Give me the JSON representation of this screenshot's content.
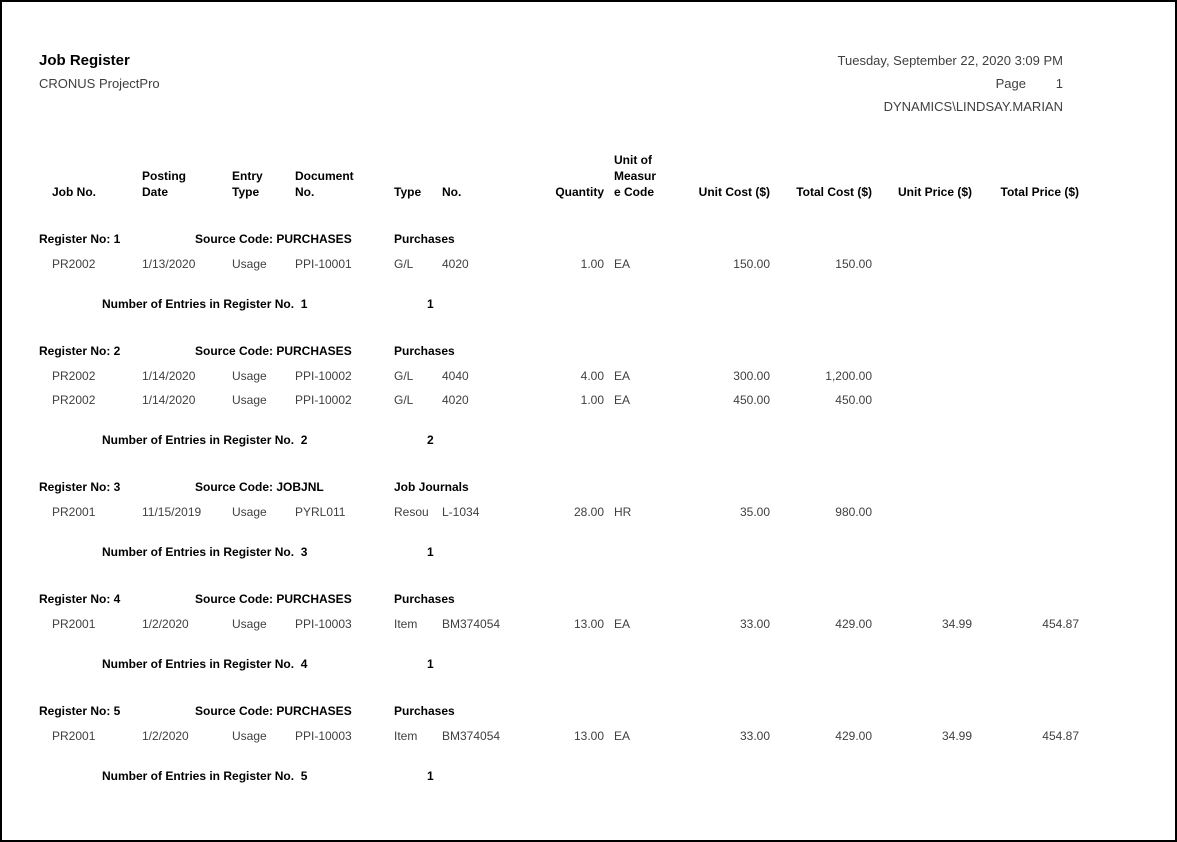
{
  "page": {
    "background": "#ffffff",
    "border_color": "#000000",
    "regular_text_color": "#3f3f3f",
    "bold_text_color": "#000000"
  },
  "header": {
    "title": "Job Register",
    "company": "CRONUS ProjectPro",
    "datetime": "Tuesday, September 22, 2020 3:09 PM",
    "page_label": "Page",
    "page_number": "1",
    "user": "DYNAMICS\\LINDSAY.MARIAN"
  },
  "columns": {
    "job_no": "Job No.",
    "posting_date_lines": [
      "Posting",
      "Date"
    ],
    "entry_type_lines": [
      "Entry",
      "Type"
    ],
    "document_no_lines": [
      "Document",
      "No."
    ],
    "type": "Type",
    "no": "No.",
    "quantity": "Quantity",
    "uom_lines": [
      "Unit of",
      "Measur",
      "e Code"
    ],
    "unit_cost": "Unit Cost ($)",
    "total_cost": "Total Cost ($)",
    "unit_price": "Unit Price ($)",
    "total_price": "Total Price ($)"
  },
  "registers": [
    {
      "register_label": "Register No: 1",
      "source_code_label": "Source Code: PURCHASES",
      "source_name": "Purchases",
      "rows": [
        {
          "job_no": "PR2002",
          "posting_date": "1/13/2020",
          "entry_type": "Usage",
          "document_no": "PPI-10001",
          "type": "G/L",
          "no": "4020",
          "quantity": "1.00",
          "uom": "EA",
          "unit_cost": "150.00",
          "total_cost": "150.00",
          "unit_price": "",
          "total_price": ""
        }
      ],
      "entries_label": "Number of Entries in Register No.  1",
      "entries_count": "1"
    },
    {
      "register_label": "Register No: 2",
      "source_code_label": "Source Code: PURCHASES",
      "source_name": "Purchases",
      "rows": [
        {
          "job_no": "PR2002",
          "posting_date": "1/14/2020",
          "entry_type": "Usage",
          "document_no": "PPI-10002",
          "type": "G/L",
          "no": "4040",
          "quantity": "4.00",
          "uom": "EA",
          "unit_cost": "300.00",
          "total_cost": "1,200.00",
          "unit_price": "",
          "total_price": ""
        },
        {
          "job_no": "PR2002",
          "posting_date": "1/14/2020",
          "entry_type": "Usage",
          "document_no": "PPI-10002",
          "type": "G/L",
          "no": "4020",
          "quantity": "1.00",
          "uom": "EA",
          "unit_cost": "450.00",
          "total_cost": "450.00",
          "unit_price": "",
          "total_price": ""
        }
      ],
      "entries_label": "Number of Entries in Register No.  2",
      "entries_count": "2"
    },
    {
      "register_label": "Register No: 3",
      "source_code_label": "Source Code: JOBJNL",
      "source_name": "Job Journals",
      "rows": [
        {
          "job_no": "PR2001",
          "posting_date": "11/15/2019",
          "entry_type": "Usage",
          "document_no": "PYRL011",
          "type": "Resou",
          "no": "L-1034",
          "quantity": "28.00",
          "uom": "HR",
          "unit_cost": "35.00",
          "total_cost": "980.00",
          "unit_price": "",
          "total_price": ""
        }
      ],
      "entries_label": "Number of Entries in Register No.  3",
      "entries_count": "1"
    },
    {
      "register_label": "Register No: 4",
      "source_code_label": "Source Code: PURCHASES",
      "source_name": "Purchases",
      "rows": [
        {
          "job_no": "PR2001",
          "posting_date": "1/2/2020",
          "entry_type": "Usage",
          "document_no": "PPI-10003",
          "type": "Item",
          "no": "BM374054",
          "quantity": "13.00",
          "uom": "EA",
          "unit_cost": "33.00",
          "total_cost": "429.00",
          "unit_price": "34.99",
          "total_price": "454.87"
        }
      ],
      "entries_label": "Number of Entries in Register No.  4",
      "entries_count": "1"
    },
    {
      "register_label": "Register No: 5",
      "source_code_label": "Source Code: PURCHASES",
      "source_name": "Purchases",
      "rows": [
        {
          "job_no": "PR2001",
          "posting_date": "1/2/2020",
          "entry_type": "Usage",
          "document_no": "PPI-10003",
          "type": "Item",
          "no": "BM374054",
          "quantity": "13.00",
          "uom": "EA",
          "unit_cost": "33.00",
          "total_cost": "429.00",
          "unit_price": "34.99",
          "total_price": "454.87"
        }
      ],
      "entries_label": "Number of Entries in Register No.  5",
      "entries_count": "1"
    }
  ]
}
